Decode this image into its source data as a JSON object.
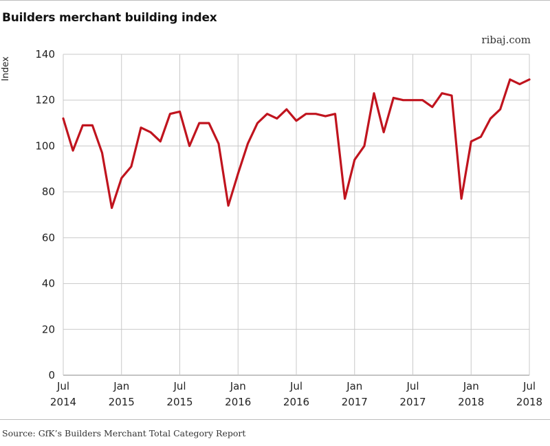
{
  "chart_data": {
    "type": "line",
    "title": "Builders merchant building index",
    "credit": "ribaj.com",
    "ylabel": "Index",
    "source": "Source: GfK’s Builders Merchant Total Category Report",
    "ylim": [
      0,
      140
    ],
    "yticks": [
      0,
      20,
      40,
      60,
      80,
      100,
      120,
      140
    ],
    "grid": true,
    "line_color": "#c0141e",
    "xticks": [
      {
        "month": "Jul",
        "year": "2014",
        "index": 0
      },
      {
        "month": "Jan",
        "year": "2015",
        "index": 6
      },
      {
        "month": "Jul",
        "year": "2015",
        "index": 12
      },
      {
        "month": "Jan",
        "year": "2016",
        "index": 18
      },
      {
        "month": "Jul",
        "year": "2016",
        "index": 24
      },
      {
        "month": "Jan",
        "year": "2017",
        "index": 30
      },
      {
        "month": "Jul",
        "year": "2017",
        "index": 36
      },
      {
        "month": "Jan",
        "year": "2018",
        "index": 42
      },
      {
        "month": "Jul",
        "year": "2018",
        "index": 48
      }
    ],
    "x": [
      "2014-07",
      "2014-08",
      "2014-09",
      "2014-10",
      "2014-11",
      "2014-12",
      "2015-01",
      "2015-02",
      "2015-03",
      "2015-04",
      "2015-05",
      "2015-06",
      "2015-07",
      "2015-08",
      "2015-09",
      "2015-10",
      "2015-11",
      "2015-12",
      "2016-01",
      "2016-02",
      "2016-03",
      "2016-04",
      "2016-05",
      "2016-06",
      "2016-07",
      "2016-08",
      "2016-09",
      "2016-10",
      "2016-11",
      "2016-12",
      "2017-01",
      "2017-02",
      "2017-03",
      "2017-04",
      "2017-05",
      "2017-06",
      "2017-07",
      "2017-08",
      "2017-09",
      "2017-10",
      "2017-11",
      "2017-12",
      "2018-01",
      "2018-02",
      "2018-03",
      "2018-04",
      "2018-05",
      "2018-06",
      "2018-07"
    ],
    "series": [
      {
        "values": [
          112,
          98,
          109,
          109,
          97,
          73,
          86,
          91,
          108,
          106,
          102,
          114,
          115,
          100,
          110,
          110,
          101,
          74,
          88,
          101,
          110,
          114,
          112,
          116,
          111,
          114,
          114,
          113,
          114,
          77,
          94,
          100,
          123,
          106,
          121,
          120,
          120,
          120,
          117,
          123,
          122,
          77,
          102,
          104,
          112,
          116,
          129,
          127,
          129
        ]
      }
    ]
  }
}
